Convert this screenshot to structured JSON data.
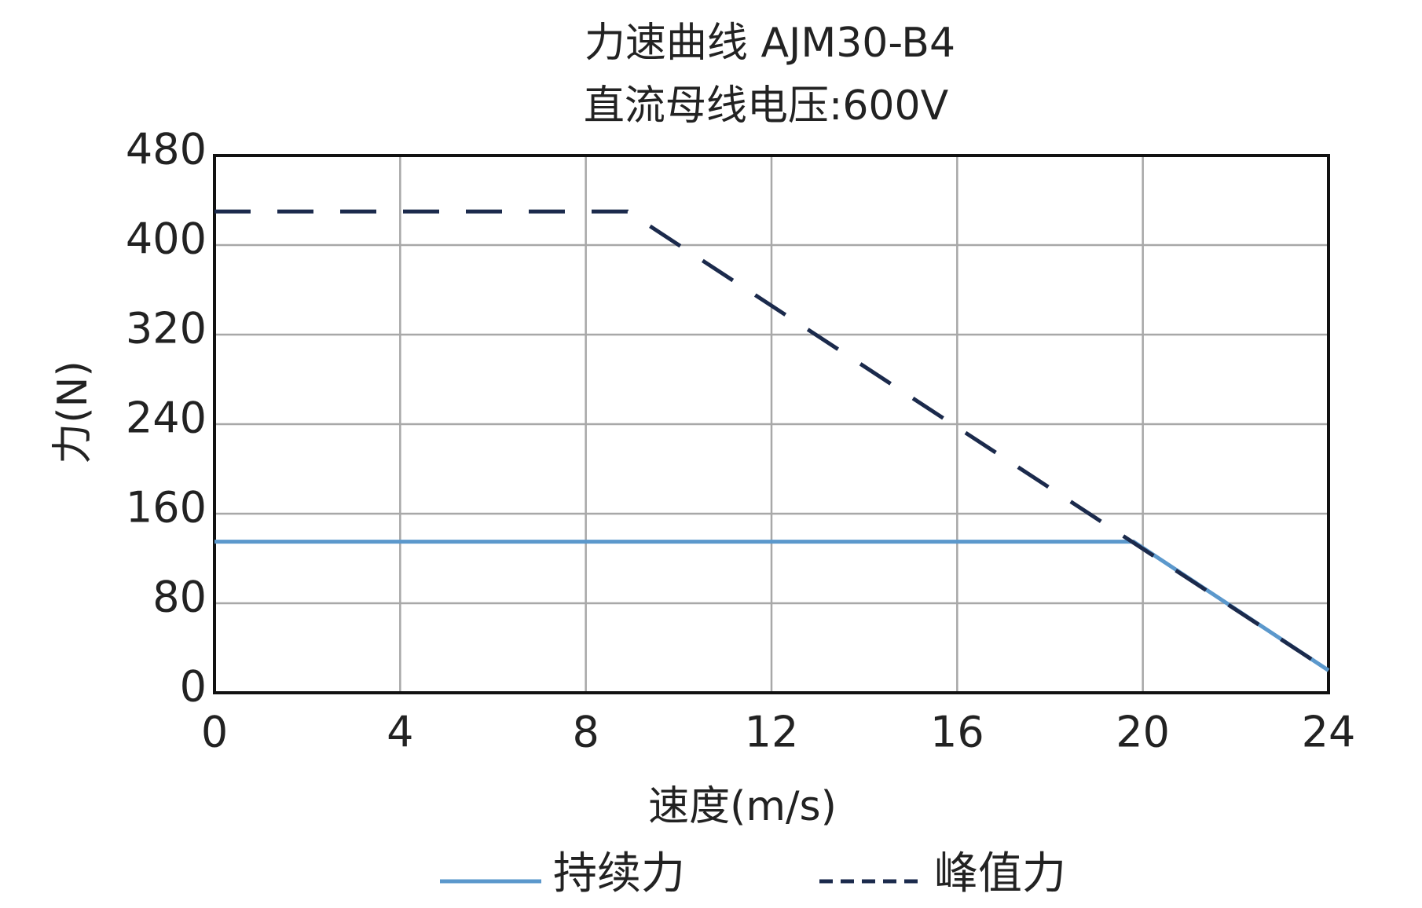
{
  "chart_data": {
    "type": "line",
    "title": "力速曲线 AJM30-B4",
    "subtitle": "直流母线电压:600V",
    "x_label": "速度(m/s)",
    "y_label": "力(N)",
    "series": [
      {
        "name": "持续力",
        "color": "#5b98cc",
        "dashed": false,
        "x": [
          0,
          19.8,
          24
        ],
        "values": [
          135,
          135,
          20
        ]
      },
      {
        "name": "峰值力",
        "color": "#1b2a4c",
        "dashed": true,
        "x": [
          0,
          8.9,
          24
        ],
        "values": [
          430,
          430,
          20
        ]
      }
    ],
    "xlim": [
      0,
      24
    ],
    "xticks": [
      0,
      4,
      8,
      12,
      16,
      20,
      24
    ],
    "ylim": [
      0,
      480
    ],
    "yticks": [
      0,
      80,
      160,
      240,
      320,
      400,
      480
    ],
    "grid": true
  }
}
